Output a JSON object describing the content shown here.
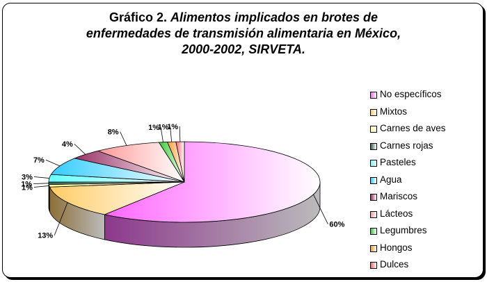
{
  "title": {
    "prefix": "Gráfico 2.",
    "line1_rest": "Alimentos implicados en brotes de",
    "line2": "enfermedades de transmisión alimentaria en México,",
    "line3": "2000-2002, SIRVETA."
  },
  "chart_data": {
    "type": "pie",
    "style": "3d-exploded-none",
    "title": "Gráfico 2. Alimentos implicados en brotes de enfermedades de transmisión alimentaria en México, 2000-2002, SIRVETA.",
    "legend_position": "right",
    "slices": [
      {
        "name": "No específicos",
        "value": 60,
        "label": "60%",
        "color": "#ff66ff"
      },
      {
        "name": "Mixtos",
        "value": 13,
        "label": "13%",
        "color": "#ffcc66"
      },
      {
        "name": "Carnes de aves",
        "value": 1,
        "label": "1%",
        "color": "#ffff99"
      },
      {
        "name": "Carnes rojas",
        "value": 1,
        "label": "1%",
        "color": "#336655"
      },
      {
        "name": "Pasteles",
        "value": 3,
        "label": "3%",
        "color": "#66ffff"
      },
      {
        "name": "Agua",
        "value": 7,
        "label": "7%",
        "color": "#33ccff"
      },
      {
        "name": "Mariscos",
        "value": 4,
        "label": "4%",
        "color": "#993366"
      },
      {
        "name": "Lácteos",
        "value": 8,
        "label": "8%",
        "color": "#ff9999"
      },
      {
        "name": "Legumbres",
        "value": 1,
        "label": "1%",
        "color": "#33cc33"
      },
      {
        "name": "Hongos",
        "value": 1,
        "label": "1%",
        "color": "#ff9933"
      },
      {
        "name": "Dulces",
        "value": 1,
        "label": "1%",
        "color": "#ff6666"
      }
    ]
  }
}
